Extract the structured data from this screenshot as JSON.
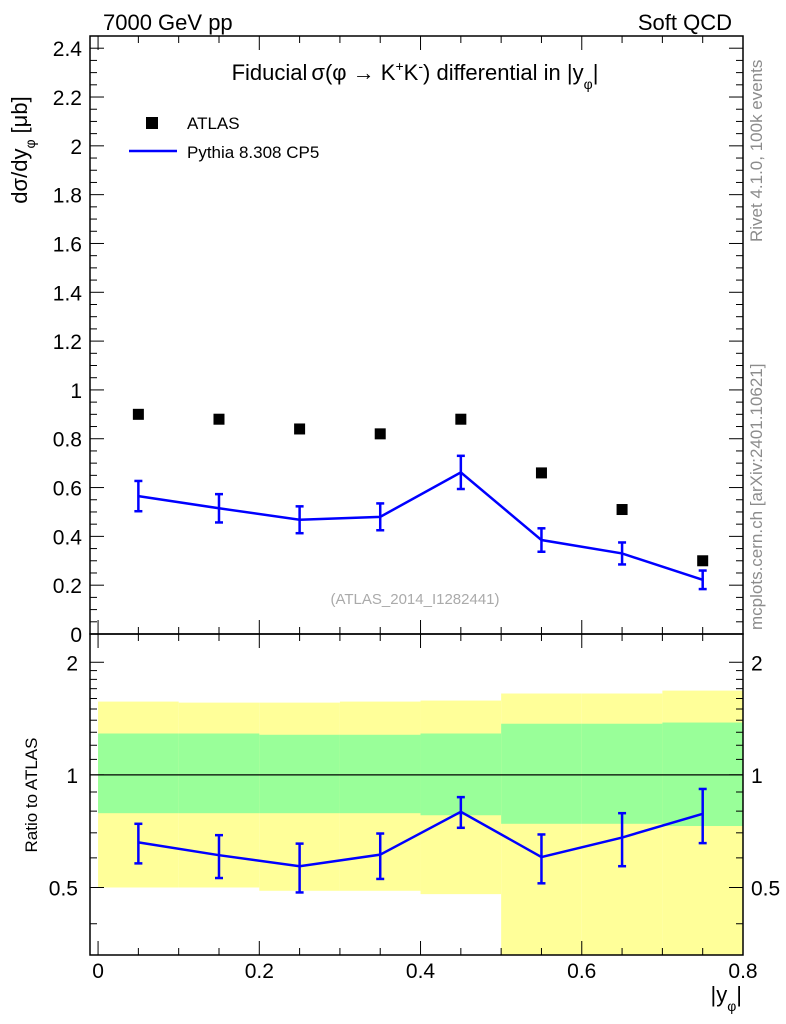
{
  "header": {
    "left": "7000 GeV pp",
    "right": "Soft QCD"
  },
  "side_labels": {
    "rivet": "Rivet 4.1.0,  100k events",
    "mcplots": "mcplots.cern.ch [arXiv:2401.10621]"
  },
  "chart_data": [
    {
      "type": "scatter",
      "panel": "main",
      "title": {
        "prefix": "Fiducial",
        "sigma": "σ(φ → K",
        "sup1": "+",
        "k2": "K",
        "sup2": "-",
        "suffix": ") differential in |y",
        "sub": "φ",
        "bar": "|"
      },
      "ylabel": {
        "main": "dσ/dy",
        "sub": "φ",
        "unit": "[μb]"
      },
      "ylim": [
        0,
        2.45
      ],
      "xlim": [
        -0.01,
        0.8
      ],
      "yticks": [
        "0",
        "0.2",
        "0.4",
        "0.6",
        "0.8",
        "1",
        "1.2",
        "1.4",
        "1.6",
        "1.8",
        "2",
        "2.2",
        "2.4"
      ],
      "yticks_values": [
        0,
        0.2,
        0.4,
        0.6,
        0.8,
        1.0,
        1.2,
        1.4,
        1.6,
        1.8,
        2.0,
        2.2,
        2.4
      ],
      "watermark": "(ATLAS_2014_I1282441)",
      "legend_placement": "top-left",
      "series": [
        {
          "name": "ATLAS",
          "kind": "markers",
          "color": "#000000",
          "x": [
            0.05,
            0.15,
            0.25,
            0.35,
            0.45,
            0.55,
            0.65,
            0.75
          ],
          "values": [
            0.9,
            0.88,
            0.84,
            0.82,
            0.88,
            0.66,
            0.51,
            0.3
          ]
        },
        {
          "name": "Pythia 8.308 CP5",
          "kind": "line",
          "color": "#0000ff",
          "x": [
            0.05,
            0.15,
            0.25,
            0.35,
            0.45,
            0.55,
            0.65,
            0.75
          ],
          "values": [
            0.565,
            0.515,
            0.468,
            0.48,
            0.662,
            0.385,
            0.33,
            0.222
          ],
          "errors": [
            0.062,
            0.058,
            0.055,
            0.055,
            0.068,
            0.048,
            0.045,
            0.038
          ]
        }
      ]
    },
    {
      "type": "line",
      "panel": "ratio",
      "ylabel": "Ratio to ATLAS",
      "xlabel": {
        "main": "|y",
        "sub": "φ",
        "bar": "|"
      },
      "ylim": [
        0.33,
        2.38
      ],
      "ylog": true,
      "xlim": [
        -0.01,
        0.8
      ],
      "xticks": [
        "0",
        "0.2",
        "0.4",
        "0.6",
        "0.8"
      ],
      "xticks_values": [
        0,
        0.2,
        0.4,
        0.6,
        0.8
      ],
      "yticks": [
        "0.5",
        "1",
        "2"
      ],
      "yticks_values": [
        0.5,
        1,
        2
      ],
      "bands": {
        "bins": [
          0.0,
          0.1,
          0.2,
          0.3,
          0.4,
          0.5,
          0.6,
          0.7,
          0.8
        ],
        "yellow": {
          "color": "#ffff99",
          "lo": [
            0.5,
            0.5,
            0.49,
            0.49,
            0.48,
            0.33,
            0.33,
            0.33
          ],
          "hi": [
            1.57,
            1.56,
            1.56,
            1.57,
            1.58,
            1.65,
            1.65,
            1.68
          ]
        },
        "green": {
          "color": "#99ff99",
          "lo": [
            0.79,
            0.79,
            0.79,
            0.79,
            0.78,
            0.74,
            0.74,
            0.73
          ],
          "hi": [
            1.29,
            1.29,
            1.28,
            1.28,
            1.29,
            1.37,
            1.37,
            1.38
          ]
        }
      },
      "series": [
        {
          "name": "Pythia 8.308 CP5",
          "color": "#0000ff",
          "x": [
            0.05,
            0.15,
            0.25,
            0.35,
            0.45,
            0.55,
            0.65,
            0.75
          ],
          "values": [
            0.66,
            0.61,
            0.57,
            0.612,
            0.797,
            0.603,
            0.68,
            0.787
          ],
          "err_lo": [
            0.08,
            0.08,
            0.085,
            0.085,
            0.075,
            0.09,
            0.11,
            0.13
          ],
          "err_hi": [
            0.08,
            0.08,
            0.085,
            0.085,
            0.075,
            0.09,
            0.11,
            0.13
          ]
        }
      ]
    }
  ]
}
